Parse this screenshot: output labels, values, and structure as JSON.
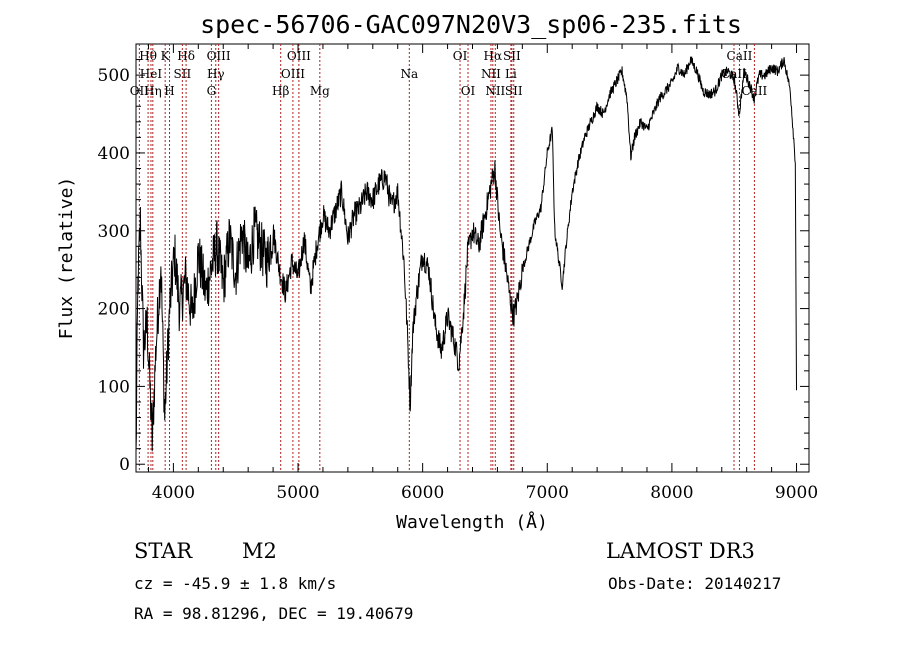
{
  "chart_data": {
    "type": "line",
    "title": "spec-56706-GAC097N20V3_sp06-235.fits",
    "xlabel": "Wavelength (Å)",
    "ylabel": "Flux (relative)",
    "xlim": [
      3700,
      9100
    ],
    "ylim": [
      -10,
      540
    ],
    "xticks": [
      4000,
      5000,
      6000,
      7000,
      8000,
      9000
    ],
    "yticks": [
      0,
      100,
      200,
      300,
      400,
      500
    ],
    "grid": false,
    "legend": "none",
    "line_color": "#000000",
    "marker_color": "#b22222",
    "spectrum_anchors": [
      [
        3700,
        5
      ],
      [
        3715,
        230
      ],
      [
        3735,
        310
      ],
      [
        3760,
        150
      ],
      [
        3790,
        180
      ],
      [
        3830,
        30
      ],
      [
        3860,
        150
      ],
      [
        3900,
        260
      ],
      [
        3930,
        60
      ],
      [
        3970,
        200
      ],
      [
        4010,
        270
      ],
      [
        4050,
        200
      ],
      [
        4100,
        240
      ],
      [
        4150,
        190
      ],
      [
        4200,
        270
      ],
      [
        4260,
        220
      ],
      [
        4300,
        250
      ],
      [
        4350,
        280
      ],
      [
        4400,
        230
      ],
      [
        4450,
        290
      ],
      [
        4500,
        245
      ],
      [
        4550,
        300
      ],
      [
        4600,
        250
      ],
      [
        4650,
        300
      ],
      [
        4700,
        280
      ],
      [
        4750,
        260
      ],
      [
        4800,
        300
      ],
      [
        4850,
        250
      ],
      [
        4900,
        220
      ],
      [
        4950,
        260
      ],
      [
        5000,
        240
      ],
      [
        5050,
        290
      ],
      [
        5100,
        225
      ],
      [
        5150,
        280
      ],
      [
        5200,
        320
      ],
      [
        5250,
        300
      ],
      [
        5300,
        325
      ],
      [
        5350,
        350
      ],
      [
        5400,
        290
      ],
      [
        5450,
        320
      ],
      [
        5500,
        330
      ],
      [
        5550,
        350
      ],
      [
        5600,
        340
      ],
      [
        5650,
        360
      ],
      [
        5700,
        370
      ],
      [
        5750,
        330
      ],
      [
        5800,
        350
      ],
      [
        5850,
        260
      ],
      [
        5880,
        160
      ],
      [
        5900,
        75
      ],
      [
        5920,
        170
      ],
      [
        5950,
        215
      ],
      [
        6000,
        270
      ],
      [
        6050,
        250
      ],
      [
        6100,
        180
      ],
      [
        6150,
        145
      ],
      [
        6200,
        190
      ],
      [
        6250,
        160
      ],
      [
        6290,
        130
      ],
      [
        6330,
        200
      ],
      [
        6360,
        270
      ],
      [
        6400,
        300
      ],
      [
        6450,
        280
      ],
      [
        6500,
        320
      ],
      [
        6550,
        360
      ],
      [
        6580,
        380
      ],
      [
        6620,
        300
      ],
      [
        6660,
        260
      ],
      [
        6700,
        215
      ],
      [
        6730,
        190
      ],
      [
        6760,
        210
      ],
      [
        6800,
        250
      ],
      [
        6850,
        280
      ],
      [
        6900,
        310
      ],
      [
        6950,
        330
      ],
      [
        7000,
        400
      ],
      [
        7040,
        430
      ],
      [
        7060,
        300
      ],
      [
        7120,
        230
      ],
      [
        7150,
        280
      ],
      [
        7200,
        350
      ],
      [
        7250,
        390
      ],
      [
        7300,
        420
      ],
      [
        7350,
        440
      ],
      [
        7400,
        460
      ],
      [
        7450,
        450
      ],
      [
        7500,
        475
      ],
      [
        7550,
        490
      ],
      [
        7600,
        505
      ],
      [
        7640,
        470
      ],
      [
        7670,
        395
      ],
      [
        7700,
        420
      ],
      [
        7750,
        440
      ],
      [
        7800,
        430
      ],
      [
        7850,
        450
      ],
      [
        7900,
        470
      ],
      [
        7950,
        480
      ],
      [
        8000,
        490
      ],
      [
        8050,
        510
      ],
      [
        8100,
        500
      ],
      [
        8150,
        520
      ],
      [
        8200,
        505
      ],
      [
        8250,
        480
      ],
      [
        8300,
        475
      ],
      [
        8350,
        480
      ],
      [
        8400,
        500
      ],
      [
        8450,
        505
      ],
      [
        8500,
        495
      ],
      [
        8540,
        450
      ],
      [
        8580,
        505
      ],
      [
        8620,
        490
      ],
      [
        8660,
        470
      ],
      [
        8700,
        500
      ],
      [
        8750,
        500
      ],
      [
        8800,
        510
      ],
      [
        8850,
        505
      ],
      [
        8900,
        520
      ],
      [
        8950,
        480
      ],
      [
        8990,
        390
      ],
      [
        9000,
        95
      ]
    ],
    "spectral_lines": [
      {
        "label": "Hθ",
        "wavelength": 3797,
        "row": 1
      },
      {
        "label": "OII",
        "wavelength": 3727,
        "row": 3
      },
      {
        "label": "HeI",
        "wavelength": 3820,
        "row": 2
      },
      {
        "label": "Hη",
        "wavelength": 3835,
        "row": 3
      },
      {
        "label": "K",
        "wavelength": 3934,
        "row": 1
      },
      {
        "label": "SII",
        "wavelength": 4072,
        "row": 2
      },
      {
        "label": "H",
        "wavelength": 3969,
        "row": 3
      },
      {
        "label": "Hδ",
        "wavelength": 4102,
        "row": 1
      },
      {
        "label": "OIII",
        "wavelength": 4363,
        "row": 1
      },
      {
        "label": "Hγ",
        "wavelength": 4340,
        "row": 2
      },
      {
        "label": "G",
        "wavelength": 4305,
        "row": 3
      },
      {
        "label": "Hβ",
        "wavelength": 4861,
        "row": 3
      },
      {
        "label": "OIII",
        "wavelength": 5007,
        "row": 1
      },
      {
        "label": "OIII",
        "wavelength": 4959,
        "row": 2
      },
      {
        "label": "Mg",
        "wavelength": 5175,
        "row": 3
      },
      {
        "label": "Na",
        "wavelength": 5893,
        "row": 2
      },
      {
        "label": "OI",
        "wavelength": 6300,
        "row": 1
      },
      {
        "label": "OI",
        "wavelength": 6364,
        "row": 3
      },
      {
        "label": "Hα",
        "wavelength": 6563,
        "row": 1
      },
      {
        "label": "SII",
        "wavelength": 6716,
        "row": 1
      },
      {
        "label": "NII",
        "wavelength": 6548,
        "row": 2
      },
      {
        "label": "Li",
        "wavelength": 6708,
        "row": 2
      },
      {
        "label": "NII",
        "wavelength": 6583,
        "row": 3
      },
      {
        "label": "SII",
        "wavelength": 6731,
        "row": 3
      },
      {
        "label": "CaII",
        "wavelength": 8542,
        "row": 1
      },
      {
        "label": "CaII",
        "wavelength": 8498,
        "row": 2
      },
      {
        "label": "CaII",
        "wavelength": 8662,
        "row": 3
      }
    ]
  },
  "info": {
    "object_class": "STAR",
    "subclass": "M2",
    "redshift": "cz = -45.9 ± 1.8 km/s",
    "coordinates": "RA =  98.81296, DEC =  19.40679",
    "survey": "LAMOST DR3",
    "obs_date": "Obs-Date: 20140217"
  }
}
